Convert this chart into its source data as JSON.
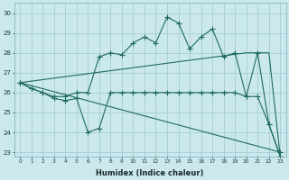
{
  "xlabel": "Humidex (Indice chaleur)",
  "background_color": "#cbe8ee",
  "grid_color": "#9fc8cc",
  "line_color": "#1e6b5e",
  "xlim": [
    -0.5,
    23.5
  ],
  "ylim": [
    22.8,
    30.5
  ],
  "yticks": [
    23,
    24,
    25,
    26,
    27,
    28,
    29,
    30
  ],
  "xticks": [
    0,
    1,
    2,
    3,
    4,
    5,
    6,
    7,
    8,
    9,
    10,
    11,
    12,
    13,
    14,
    15,
    16,
    17,
    18,
    19,
    20,
    21,
    22,
    23
  ],
  "series1_x": [
    0,
    1,
    2,
    3,
    4,
    5,
    6,
    7,
    8,
    9,
    10,
    11,
    12,
    13,
    14,
    15,
    16,
    17,
    18,
    19,
    20,
    21,
    22,
    23
  ],
  "series1_y": [
    26.5,
    26.2,
    26.0,
    25.8,
    25.8,
    26.0,
    26.0,
    27.8,
    28.0,
    27.9,
    28.5,
    28.8,
    28.5,
    29.8,
    29.5,
    28.2,
    28.8,
    29.2,
    27.8,
    28.0,
    25.8,
    28.0,
    24.4,
    22.8
  ],
  "series2_x": [
    0,
    1,
    2,
    3,
    4,
    5,
    6,
    7,
    8,
    9,
    10,
    11,
    12,
    13,
    14,
    15,
    16,
    17,
    18,
    19,
    20,
    21,
    22,
    23
  ],
  "series2_y": [
    26.5,
    26.2,
    26.0,
    25.7,
    25.6,
    25.7,
    24.0,
    24.2,
    26.0,
    26.0,
    26.0,
    26.0,
    26.0,
    26.0,
    26.0,
    26.0,
    26.0,
    26.0,
    26.0,
    26.0,
    25.8,
    25.8,
    24.4,
    22.8
  ],
  "series3_x": [
    0,
    20,
    22,
    23
  ],
  "series3_y": [
    26.5,
    28.0,
    28.0,
    22.8
  ],
  "series4_x": [
    0,
    23
  ],
  "series4_y": [
    26.5,
    23.0
  ]
}
